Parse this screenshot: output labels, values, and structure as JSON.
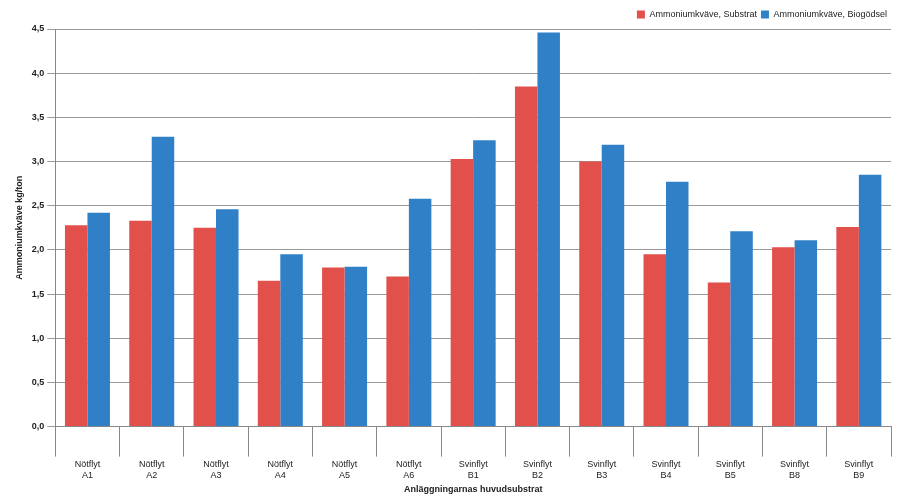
{
  "chart_data": {
    "type": "bar",
    "x_label": "Anläggningarnas huvudsubstrat",
    "y_label": "Ammoniumkväve kg/ton",
    "categories": [
      [
        "Nötflyt",
        "A1"
      ],
      [
        "Nötflyt",
        "A2"
      ],
      [
        "Nötflyt",
        "A3"
      ],
      [
        "Nötflyt",
        "A4"
      ],
      [
        "Nötflyt",
        "A5"
      ],
      [
        "Nötflyt",
        "A6"
      ],
      [
        "Svinflyt",
        "B1"
      ],
      [
        "Svinflyt",
        "B2"
      ],
      [
        "Svinflyt",
        "B3"
      ],
      [
        "Svinflyt",
        "B4"
      ],
      [
        "Svinflyt",
        "B5"
      ],
      [
        "Svinflyt",
        "B8"
      ],
      [
        "Svinflyt",
        "B9"
      ]
    ],
    "series": [
      {
        "name": "Ammoniumkväve, Substrat",
        "color": "#e2504b",
        "values": [
          2.28,
          2.33,
          2.25,
          1.65,
          1.8,
          1.7,
          3.03,
          3.85,
          3.0,
          1.95,
          1.63,
          2.03,
          2.26
        ]
      },
      {
        "name": "Ammoniumkväve, Biogödsel",
        "color": "#2f80c6",
        "values": [
          2.42,
          3.28,
          2.46,
          1.95,
          1.81,
          2.58,
          3.24,
          4.46,
          3.19,
          2.77,
          2.21,
          2.11,
          2.85
        ]
      }
    ],
    "ylim": [
      0,
      4.5
    ],
    "yticks": [
      {
        "value": 0,
        "label": "0,0"
      },
      {
        "value": 0.5,
        "label": "0,5"
      },
      {
        "value": 1,
        "label": "1,0"
      },
      {
        "value": 1.5,
        "label": "1,5"
      },
      {
        "value": 2,
        "label": "2,0"
      },
      {
        "value": 2.5,
        "label": "2,5"
      },
      {
        "value": 3,
        "label": "3,0"
      },
      {
        "value": 3.5,
        "label": "3,5"
      },
      {
        "value": 4,
        "label": "4,0"
      },
      {
        "value": 4.5,
        "label": "4,5"
      }
    ],
    "grid": true,
    "legend": "top-right"
  }
}
